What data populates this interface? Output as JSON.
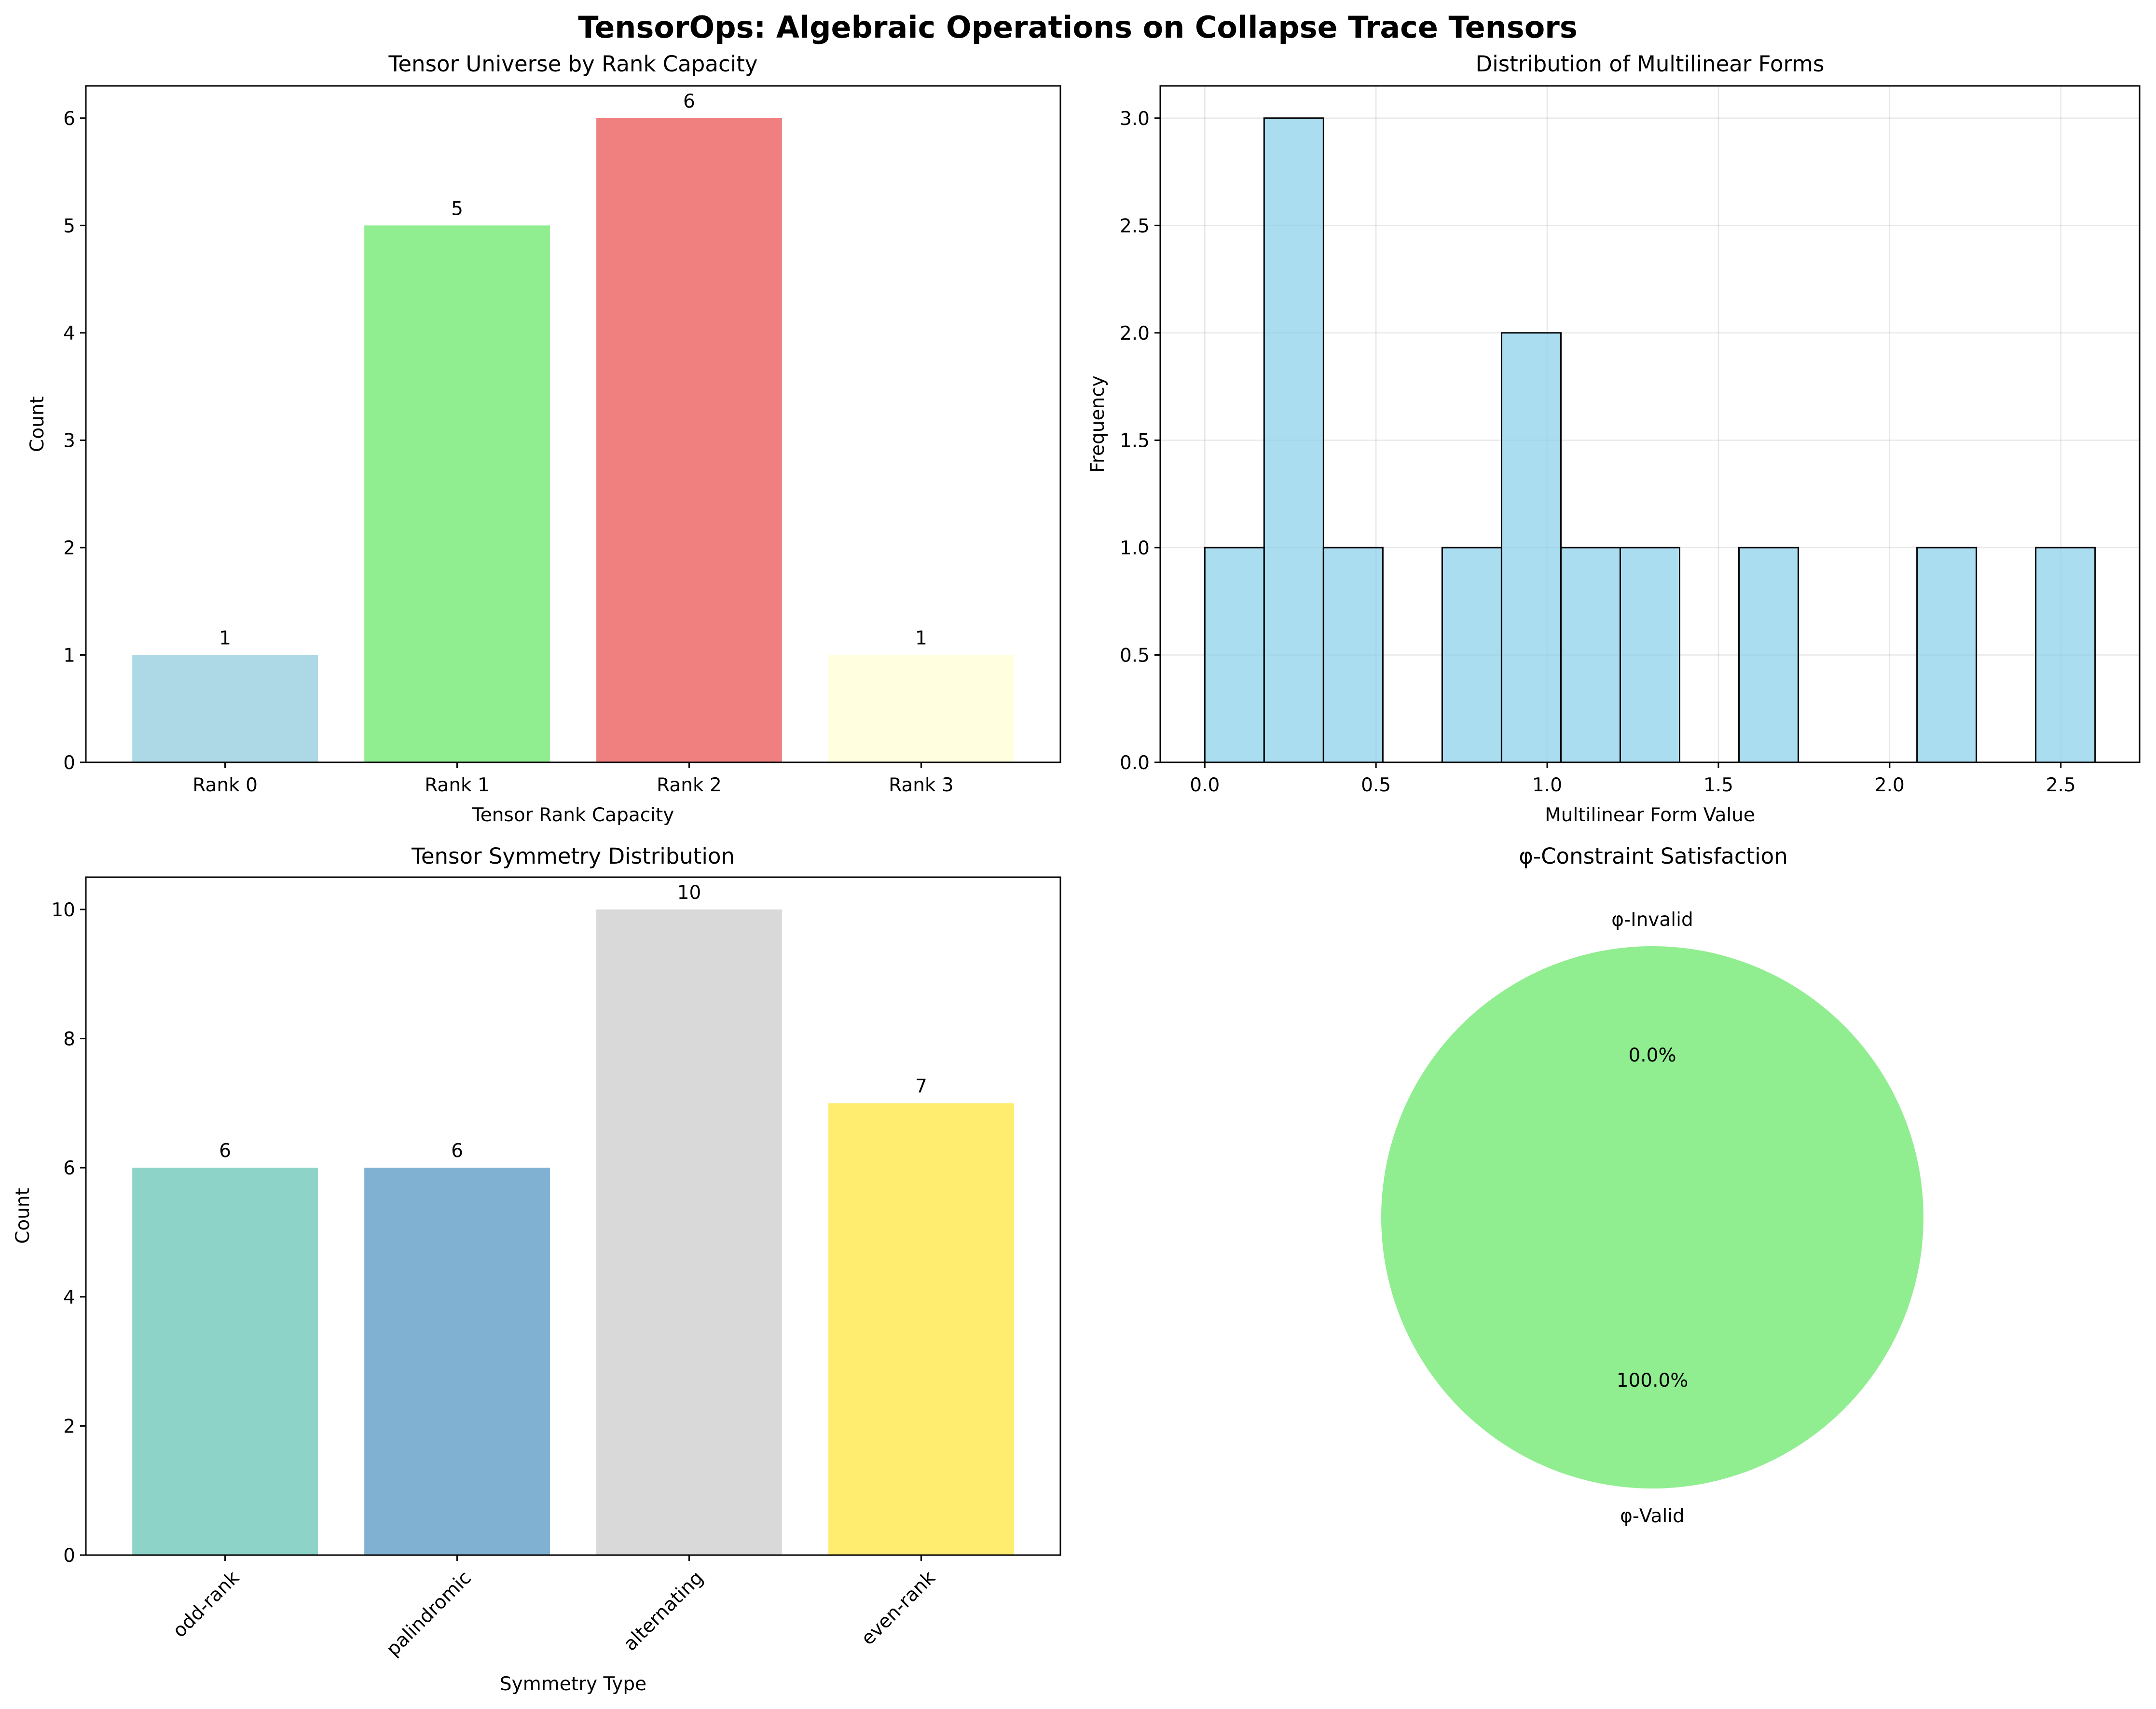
{
  "figure_title": "TensorOps: Algebraic Operations on Collapse Trace Tensors",
  "chart_data": [
    {
      "id": "rank",
      "type": "bar",
      "title": "Tensor Universe by Rank Capacity",
      "xlabel": "Tensor Rank Capacity",
      "ylabel": "Count",
      "categories": [
        "Rank 0",
        "Rank 1",
        "Rank 2",
        "Rank 3"
      ],
      "values": [
        1,
        5,
        6,
        1
      ],
      "colors": [
        "#add8e6",
        "#90ee90",
        "#f08080",
        "#ffffe0"
      ],
      "ylim": [
        0,
        6.3
      ],
      "yticks": [
        0,
        1,
        2,
        3,
        4,
        5,
        6
      ],
      "grid": false
    },
    {
      "id": "hist",
      "type": "bar",
      "subtype": "histogram",
      "title": "Distribution of Multilinear Forms",
      "xlabel": "Multilinear Form Value",
      "ylabel": "Frequency",
      "bin_range": [
        0.0,
        2.6
      ],
      "bin_count": 15,
      "counts": [
        1,
        3,
        1,
        0,
        1,
        2,
        1,
        1,
        0,
        1,
        0,
        0,
        1,
        0,
        1
      ],
      "color": "#87ceeb",
      "edge_color": "#000000",
      "xlim": [
        -0.13,
        2.73
      ],
      "ylim": [
        0,
        3.15
      ],
      "xticks": [
        0.0,
        0.5,
        1.0,
        1.5,
        2.0,
        2.5
      ],
      "yticks": [
        0.0,
        0.5,
        1.0,
        1.5,
        2.0,
        2.5,
        3.0
      ],
      "xtick_labels": [
        "0.0",
        "0.5",
        "1.0",
        "1.5",
        "2.0",
        "2.5"
      ],
      "ytick_labels": [
        "0.0",
        "0.5",
        "1.0",
        "1.5",
        "2.0",
        "2.5",
        "3.0"
      ],
      "grid": true
    },
    {
      "id": "symmetry",
      "type": "bar",
      "title": "Tensor Symmetry Distribution",
      "xlabel": "Symmetry Type",
      "ylabel": "Count",
      "categories": [
        "odd-rank",
        "palindromic",
        "alternating",
        "even-rank"
      ],
      "values": [
        6,
        6,
        10,
        7
      ],
      "colors": [
        "#8dd3c7",
        "#80b1d3",
        "#d9d9d9",
        "#ffed6f"
      ],
      "ylim": [
        0,
        10.5
      ],
      "yticks": [
        0,
        2,
        4,
        6,
        8,
        10
      ],
      "grid": false
    },
    {
      "id": "phi",
      "type": "pie",
      "title": "φ-Constraint Satisfaction",
      "labels": [
        "φ-Valid",
        "φ-Invalid"
      ],
      "values": [
        100.0,
        0.0
      ],
      "percent_labels": [
        "100.0%",
        "0.0%"
      ],
      "colors": [
        "#90ee90",
        "#f08080"
      ]
    }
  ]
}
